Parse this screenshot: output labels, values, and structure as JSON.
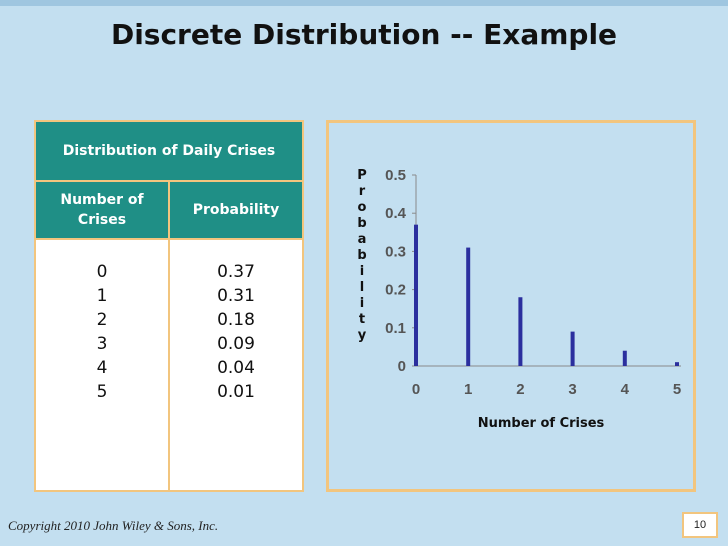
{
  "title": "Discrete Distribution -- Example",
  "table": {
    "header": "Distribution of Daily Crises",
    "col1_header": "Number of Crises",
    "col2_header": "Probability",
    "rows": [
      {
        "crises": "0",
        "prob": "0.37"
      },
      {
        "crises": "1",
        "prob": "0.31"
      },
      {
        "crises": "2",
        "prob": "0.18"
      },
      {
        "crises": "3",
        "prob": "0.09"
      },
      {
        "crises": "4",
        "prob": "0.04"
      },
      {
        "crises": "5",
        "prob": "0.01"
      }
    ]
  },
  "chart_data": {
    "type": "bar",
    "categories": [
      "0",
      "1",
      "2",
      "3",
      "4",
      "5"
    ],
    "values": [
      0.37,
      0.31,
      0.18,
      0.09,
      0.04,
      0.01
    ],
    "ylabel": "Probability",
    "xlabel": "Number of Crises",
    "ylim": [
      0,
      0.5
    ],
    "yticks": [
      "0",
      "0.1",
      "0.2",
      "0.3",
      "0.4",
      "0.5"
    ],
    "grid": false,
    "bar_color": "#2b2f9e"
  },
  "footer": "Copyright 2010 John Wiley & Sons, Inc.",
  "page_number": "10"
}
